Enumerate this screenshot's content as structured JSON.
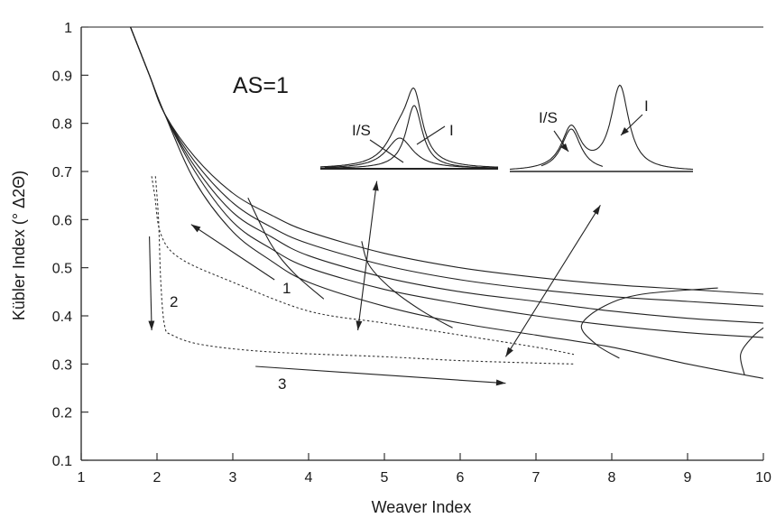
{
  "chart_data": {
    "type": "line",
    "title": "",
    "xlabel": "Weaver Index",
    "ylabel": "Kübler Index (° Δ2Θ)",
    "xlim": [
      1,
      10
    ],
    "ylim": [
      0.1,
      1.0
    ],
    "xticks": [
      1,
      2,
      3,
      4,
      5,
      6,
      7,
      8,
      9,
      10
    ],
    "yticks": [
      0.1,
      0.2,
      0.3,
      0.4,
      0.5,
      0.6,
      0.7,
      0.8,
      0.9,
      1
    ],
    "ytick_labels": [
      "0.1",
      "0.2",
      "0.3",
      "0.4",
      "0.5",
      "0.6",
      "0.7",
      "0.8",
      "0.9",
      "1"
    ],
    "grid": false,
    "series": [
      {
        "points": [
          [
            1.65,
            1.0
          ],
          [
            1.9,
            0.9
          ],
          [
            2.1,
            0.82
          ],
          [
            2.5,
            0.73
          ],
          [
            3,
            0.655
          ],
          [
            3.5,
            0.61
          ],
          [
            4,
            0.575
          ],
          [
            5,
            0.53
          ],
          [
            6,
            0.5
          ],
          [
            7,
            0.48
          ],
          [
            8,
            0.465
          ],
          [
            9,
            0.455
          ],
          [
            10,
            0.445
          ]
        ]
      },
      {
        "points": [
          [
            1.65,
            1.0
          ],
          [
            1.9,
            0.9
          ],
          [
            2.1,
            0.82
          ],
          [
            2.5,
            0.72
          ],
          [
            3,
            0.635
          ],
          [
            3.5,
            0.585
          ],
          [
            4,
            0.55
          ],
          [
            5,
            0.505
          ],
          [
            6,
            0.475
          ],
          [
            7,
            0.455
          ],
          [
            8,
            0.44
          ],
          [
            9,
            0.43
          ],
          [
            10,
            0.42
          ]
        ]
      },
      {
        "points": [
          [
            1.65,
            1.0
          ],
          [
            1.9,
            0.9
          ],
          [
            2.1,
            0.82
          ],
          [
            2.5,
            0.71
          ],
          [
            3,
            0.615
          ],
          [
            3.5,
            0.565
          ],
          [
            4,
            0.525
          ],
          [
            5,
            0.48
          ],
          [
            6,
            0.45
          ],
          [
            7,
            0.43
          ],
          [
            8,
            0.41
          ],
          [
            9,
            0.395
          ],
          [
            10,
            0.385
          ]
        ]
      },
      {
        "points": [
          [
            1.65,
            1.0
          ],
          [
            1.9,
            0.9
          ],
          [
            2.1,
            0.82
          ],
          [
            2.5,
            0.7
          ],
          [
            3,
            0.595
          ],
          [
            3.5,
            0.54
          ],
          [
            4,
            0.5
          ],
          [
            5,
            0.455
          ],
          [
            6,
            0.425
          ],
          [
            7,
            0.4
          ],
          [
            8,
            0.38
          ],
          [
            9,
            0.365
          ],
          [
            10,
            0.355
          ]
        ]
      },
      {
        "points": [
          [
            1.65,
            1.0
          ],
          [
            1.9,
            0.9
          ],
          [
            2.1,
            0.82
          ],
          [
            2.5,
            0.68
          ],
          [
            3,
            0.575
          ],
          [
            3.5,
            0.515
          ],
          [
            4,
            0.47
          ],
          [
            5,
            0.42
          ],
          [
            6,
            0.385
          ],
          [
            7,
            0.36
          ],
          [
            8,
            0.335
          ],
          [
            9,
            0.3
          ],
          [
            10,
            0.27
          ]
        ]
      }
    ],
    "boundary_curves": [
      {
        "points": [
          [
            3.2,
            0.645
          ],
          [
            3.5,
            0.55
          ],
          [
            3.8,
            0.49
          ],
          [
            4.2,
            0.435
          ]
        ]
      },
      {
        "points": [
          [
            4.7,
            0.555
          ],
          [
            4.8,
            0.505
          ],
          [
            5.1,
            0.455
          ],
          [
            5.5,
            0.41
          ],
          [
            5.9,
            0.375
          ]
        ]
      },
      {
        "points": [
          [
            9.4,
            0.458
          ],
          [
            8.4,
            0.445
          ],
          [
            7.9,
            0.42
          ],
          [
            7.6,
            0.38
          ],
          [
            7.8,
            0.34
          ],
          [
            8.1,
            0.312
          ]
        ]
      },
      {
        "points": [
          [
            10,
            0.375
          ],
          [
            9.85,
            0.355
          ],
          [
            9.7,
            0.32
          ],
          [
            9.75,
            0.278
          ]
        ]
      }
    ],
    "dashed_paths": [
      {
        "label": "1",
        "points": [
          [
            1.93,
            0.69
          ],
          [
            1.97,
            0.65
          ],
          [
            2.05,
            0.57
          ],
          [
            2.3,
            0.52
          ],
          [
            3,
            0.47
          ],
          [
            4,
            0.41
          ],
          [
            5,
            0.385
          ],
          [
            6,
            0.36
          ],
          [
            7,
            0.335
          ],
          [
            7.5,
            0.32
          ]
        ]
      },
      {
        "label": "2",
        "points": [
          [
            1.98,
            0.69
          ],
          [
            2.02,
            0.6
          ],
          [
            2.05,
            0.47
          ],
          [
            2.1,
            0.38
          ],
          [
            2.2,
            0.36
          ],
          [
            2.6,
            0.34
          ],
          [
            3.5,
            0.325
          ],
          [
            5,
            0.315
          ],
          [
            6,
            0.307
          ],
          [
            7,
            0.302
          ],
          [
            7.5,
            0.3
          ]
        ]
      }
    ],
    "arrows": [
      {
        "label": "1",
        "from": [
          3.55,
          0.475
        ],
        "to": [
          2.45,
          0.59
        ]
      },
      {
        "label": "2",
        "from": [
          1.9,
          0.565
        ],
        "to": [
          1.93,
          0.37
        ]
      },
      {
        "label": "3",
        "from": [
          3.3,
          0.295
        ],
        "to": [
          6.6,
          0.26
        ]
      }
    ],
    "inset_arrows": [
      {
        "from": [
          4.9,
          0.68
        ],
        "to": [
          4.65,
          0.37
        ]
      },
      {
        "from": [
          7.85,
          0.63
        ],
        "to": [
          6.6,
          0.315
        ]
      }
    ],
    "annotations": {
      "as_label": "AS=1",
      "path_1": "1",
      "path_2": "2",
      "path_3": "3",
      "inset_left_is": "I/S",
      "inset_left_i": "I",
      "inset_right_is": "I/S",
      "inset_right_i": "I"
    }
  }
}
